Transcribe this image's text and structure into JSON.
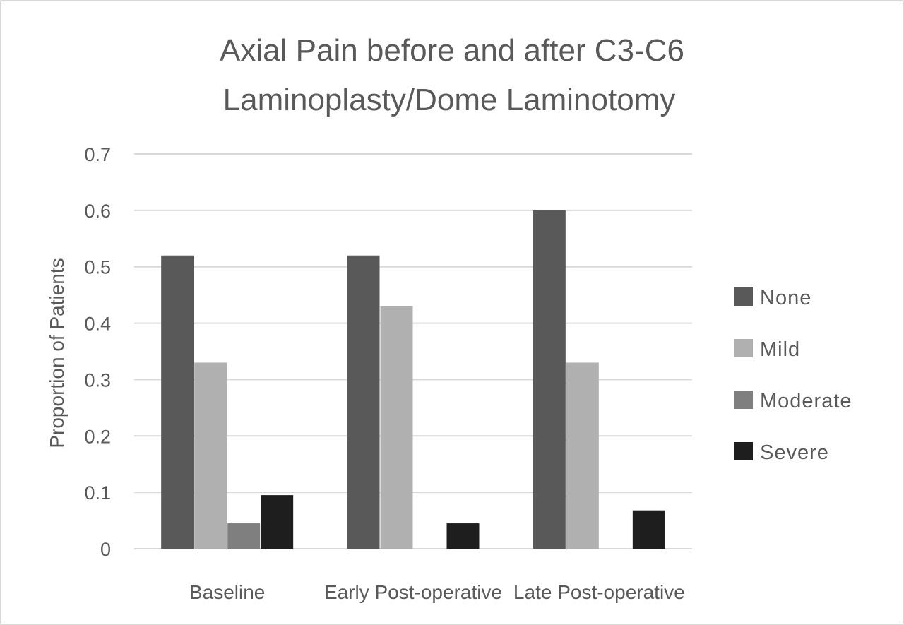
{
  "chart_data": {
    "type": "bar",
    "title_lines": [
      "Axial Pain before and after C3-C6",
      "Laminoplasty/Dome Laminotomy"
    ],
    "xlabel": "",
    "ylabel": "Proportion of Patients",
    "ylim": [
      0,
      0.7
    ],
    "yticks": [
      "0",
      "0.1",
      "0.2",
      "0.3",
      "0.4",
      "0.5",
      "0.6",
      "0.7"
    ],
    "grid": true,
    "legend_position": "right",
    "categories": [
      "Baseline",
      "Early Post-operative",
      "Late  Post-operative"
    ],
    "series": [
      {
        "name": "None",
        "color": "#595959",
        "values": [
          0.52,
          0.52,
          0.6
        ]
      },
      {
        "name": "Mild",
        "color": "#b0b0b0",
        "values": [
          0.33,
          0.43,
          0.33
        ]
      },
      {
        "name": "Moderate",
        "color": "#7f7f7f",
        "values": [
          0.045,
          0,
          0
        ]
      },
      {
        "name": "Severe",
        "color": "#1e1e1e",
        "values": [
          0.095,
          0.045,
          0.068
        ]
      }
    ]
  }
}
